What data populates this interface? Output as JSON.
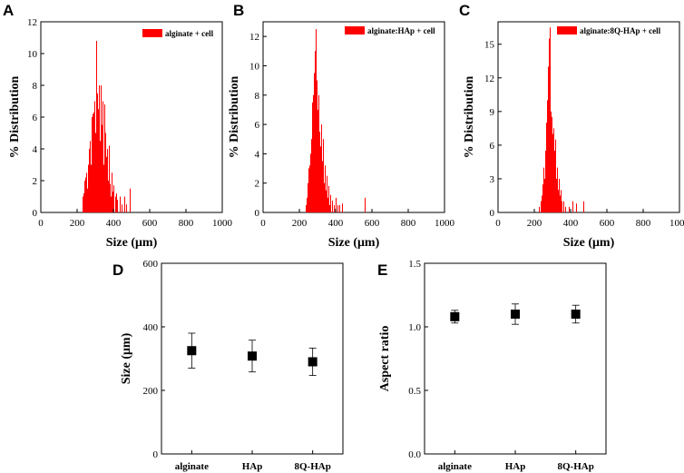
{
  "colors": {
    "bar": "#ff0000",
    "axis": "#000000",
    "marker": "#000000",
    "background": "#ffffff"
  },
  "chart_data": [
    {
      "id": "A",
      "type": "bar",
      "panel_label": "A",
      "legend": "alginate + cell",
      "legend_position": "top-right",
      "xlabel": "Size (μm)",
      "ylabel": "% Distribution",
      "xlim": [
        0,
        1000
      ],
      "ylim": [
        0,
        12
      ],
      "xticks": [
        0,
        200,
        400,
        600,
        800,
        1000
      ],
      "yticks": [
        0,
        2,
        4,
        6,
        8,
        10,
        12
      ],
      "bin_width": 5,
      "bins": [
        [
          230,
          1
        ],
        [
          235,
          1.2
        ],
        [
          240,
          2
        ],
        [
          245,
          2.2
        ],
        [
          250,
          2.5
        ],
        [
          255,
          1.5
        ],
        [
          260,
          3
        ],
        [
          265,
          4
        ],
        [
          270,
          4.5
        ],
        [
          275,
          3
        ],
        [
          280,
          6
        ],
        [
          285,
          6.2
        ],
        [
          290,
          6.3
        ],
        [
          295,
          7
        ],
        [
          300,
          5
        ],
        [
          305,
          10.8
        ],
        [
          310,
          7.5
        ],
        [
          315,
          6.5
        ],
        [
          320,
          8
        ],
        [
          325,
          4.5
        ],
        [
          330,
          8
        ],
        [
          335,
          5.5
        ],
        [
          340,
          7
        ],
        [
          345,
          3
        ],
        [
          350,
          6.8
        ],
        [
          355,
          5
        ],
        [
          360,
          3.5
        ],
        [
          365,
          4
        ],
        [
          370,
          2
        ],
        [
          375,
          4.2
        ],
        [
          380,
          1.8
        ],
        [
          385,
          1
        ],
        [
          390,
          2.5
        ],
        [
          395,
          1.3
        ],
        [
          400,
          1.7
        ],
        [
          410,
          1
        ],
        [
          415,
          1.2
        ],
        [
          420,
          0.8
        ],
        [
          435,
          1
        ],
        [
          445,
          0.5
        ],
        [
          460,
          1
        ],
        [
          470,
          0.5
        ],
        [
          490,
          1.5
        ]
      ]
    },
    {
      "id": "B",
      "type": "bar",
      "panel_label": "B",
      "legend": "alginate:HAp + cell",
      "legend_position": "top-right",
      "xlabel": "Size (μm)",
      "ylabel": "% Distribution",
      "xlim": [
        0,
        1000
      ],
      "ylim": [
        0,
        13
      ],
      "xticks": [
        0,
        200,
        400,
        600,
        800,
        1000
      ],
      "yticks": [
        0,
        2,
        4,
        6,
        8,
        10,
        12
      ],
      "bin_width": 5,
      "bins": [
        [
          235,
          0.5
        ],
        [
          240,
          1
        ],
        [
          245,
          2
        ],
        [
          250,
          3
        ],
        [
          255,
          3.2
        ],
        [
          260,
          4
        ],
        [
          265,
          5
        ],
        [
          270,
          7.5
        ],
        [
          275,
          8
        ],
        [
          280,
          9.5
        ],
        [
          285,
          11
        ],
        [
          290,
          12.5
        ],
        [
          295,
          9
        ],
        [
          300,
          7
        ],
        [
          305,
          8
        ],
        [
          310,
          5.5
        ],
        [
          315,
          4.5
        ],
        [
          320,
          6
        ],
        [
          325,
          3.5
        ],
        [
          330,
          5
        ],
        [
          335,
          2
        ],
        [
          340,
          3.2
        ],
        [
          345,
          1.5
        ],
        [
          350,
          2.5
        ],
        [
          355,
          1
        ],
        [
          360,
          1.8
        ],
        [
          365,
          0.5
        ],
        [
          370,
          1.2
        ],
        [
          380,
          0.8
        ],
        [
          390,
          0.5
        ],
        [
          400,
          1
        ],
        [
          410,
          0.5
        ],
        [
          420,
          0.5
        ],
        [
          435,
          0.6
        ],
        [
          560,
          1
        ]
      ]
    },
    {
      "id": "C",
      "type": "bar",
      "panel_label": "C",
      "legend": "alginate:8Q-HAp + cell",
      "legend_position": "top-right",
      "xlabel": "Size (μm)",
      "ylabel": "% Distribution",
      "xlim": [
        0,
        1000
      ],
      "ylim": [
        0,
        17
      ],
      "xticks": [
        0,
        200,
        400,
        600,
        800,
        1000
      ],
      "yticks": [
        0,
        3,
        6,
        9,
        12,
        15
      ],
      "bin_width": 5,
      "bins": [
        [
          225,
          0.5
        ],
        [
          235,
          1
        ],
        [
          240,
          1.5
        ],
        [
          245,
          2.5
        ],
        [
          250,
          4
        ],
        [
          255,
          3
        ],
        [
          260,
          5.5
        ],
        [
          265,
          8
        ],
        [
          270,
          10
        ],
        [
          275,
          13
        ],
        [
          280,
          15.5
        ],
        [
          285,
          16.5
        ],
        [
          290,
          9
        ],
        [
          295,
          8.5
        ],
        [
          300,
          7
        ],
        [
          305,
          7.5
        ],
        [
          310,
          5.5
        ],
        [
          315,
          6.5
        ],
        [
          320,
          3
        ],
        [
          325,
          4
        ],
        [
          330,
          2
        ],
        [
          335,
          3
        ],
        [
          340,
          1.5
        ],
        [
          345,
          2
        ],
        [
          350,
          1
        ],
        [
          360,
          1
        ],
        [
          370,
          0.5
        ],
        [
          390,
          0.5
        ],
        [
          410,
          1
        ],
        [
          430,
          0.8
        ],
        [
          470,
          1
        ]
      ]
    },
    {
      "id": "D",
      "type": "scatter",
      "panel_label": "D",
      "xlabel": "",
      "ylabel": "Size (μm)",
      "categories": [
        "alginate",
        "HAp",
        "8Q-HAp"
      ],
      "values": [
        325,
        308,
        290
      ],
      "errors": [
        55,
        50,
        43
      ],
      "ylim": [
        0,
        600
      ],
      "yticks": [
        0,
        200,
        400,
        600
      ]
    },
    {
      "id": "E",
      "type": "scatter",
      "panel_label": "E",
      "xlabel": "",
      "ylabel": "Aspect ratio",
      "categories": [
        "alginate",
        "HAp",
        "8Q-HAp"
      ],
      "values": [
        1.08,
        1.1,
        1.1
      ],
      "errors": [
        0.05,
        0.08,
        0.07
      ],
      "ylim": [
        0,
        1.5
      ],
      "yticks": [
        "0.0",
        "0.5",
        "1.0",
        "1.5"
      ]
    }
  ]
}
